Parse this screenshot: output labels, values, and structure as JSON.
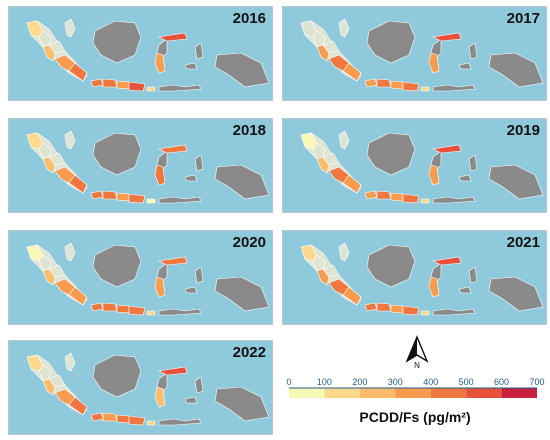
{
  "panels": [
    {
      "year": "2016",
      "values": {
        "aceh": 150,
        "north-sumatra": 0,
        "west-sumatra": 250,
        "riau": 0,
        "south-sumatra": 350,
        "lampung": 400,
        "jakarta": 450,
        "west-java": 400,
        "central-java": 350,
        "east-java": 500,
        "bali": 150,
        "north-sulawesi": 500,
        "south-sulawesi": 350
      }
    },
    {
      "year": "2017",
      "values": {
        "aceh": 0,
        "north-sumatra": 0,
        "west-sumatra": 300,
        "riau": 0,
        "south-sumatra": 400,
        "lampung": 350,
        "jakarta": 350,
        "west-java": 400,
        "central-java": 350,
        "east-java": 450,
        "bali": 150,
        "north-sulawesi": 500,
        "south-sulawesi": 300
      }
    },
    {
      "year": "2018",
      "values": {
        "aceh": 150,
        "north-sumatra": 0,
        "west-sumatra": 250,
        "riau": 0,
        "south-sumatra": 350,
        "lampung": 400,
        "jakarta": 400,
        "west-java": 400,
        "central-java": 350,
        "east-java": 450,
        "bali": 50,
        "north-sulawesi": 450,
        "south-sulawesi": 400
      }
    },
    {
      "year": "2019",
      "values": {
        "aceh": 80,
        "north-sumatra": 0,
        "west-sumatra": 250,
        "riau": 0,
        "south-sumatra": 400,
        "lampung": 350,
        "jakarta": 350,
        "west-java": 400,
        "central-java": 350,
        "east-java": 400,
        "bali": 150,
        "north-sulawesi": 500,
        "south-sulawesi": 300
      }
    },
    {
      "year": "2020",
      "values": {
        "aceh": 80,
        "north-sumatra": 0,
        "west-sumatra": 250,
        "riau": 0,
        "south-sumatra": 350,
        "lampung": 300,
        "jakarta": 450,
        "west-java": 400,
        "central-java": 400,
        "east-java": 400,
        "bali": 150,
        "north-sulawesi": 450,
        "south-sulawesi": 350
      }
    },
    {
      "year": "2021",
      "values": {
        "aceh": 150,
        "north-sumatra": 0,
        "west-sumatra": 300,
        "riau": 0,
        "south-sumatra": 400,
        "lampung": 350,
        "jakarta": 400,
        "west-java": 400,
        "central-java": 350,
        "east-java": 450,
        "bali": 150,
        "north-sulawesi": 500,
        "south-sulawesi": 300
      }
    },
    {
      "year": "2022",
      "values": {
        "aceh": 150,
        "north-sumatra": 0,
        "west-sumatra": 250,
        "riau": 0,
        "south-sumatra": 300,
        "lampung": 400,
        "jakarta": 400,
        "west-java": 350,
        "central-java": 400,
        "east-java": 450,
        "bali": 150,
        "north-sulawesi": 500,
        "south-sulawesi": 200
      }
    }
  ],
  "legend": {
    "title": "PCDD/Fs (pg/m²)",
    "ticks": [
      "0",
      "100",
      "200",
      "300",
      "400",
      "500",
      "600",
      "700"
    ],
    "colors": [
      "#f7f7b6",
      "#fcd98c",
      "#fbbd6b",
      "#f79c4f",
      "#f0773f",
      "#e8523a",
      "#c9213d"
    ],
    "north_label": "N"
  },
  "colors": {
    "sea": "#8ec9dc",
    "land_no_data": "#8a8a8a",
    "land_base": "#dfe3d2",
    "no_value_zero": "#ffffff"
  }
}
